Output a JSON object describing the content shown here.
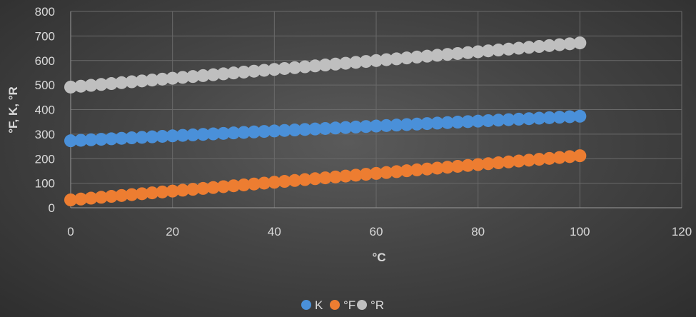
{
  "chart_data": {
    "type": "scatter",
    "xlabel": "°C",
    "ylabel": "°F, K, °R",
    "xlim": [
      0,
      120
    ],
    "ylim": [
      0,
      800
    ],
    "x_ticks": [
      "0",
      "20",
      "40",
      "60",
      "80",
      "100",
      "120"
    ],
    "y_ticks": [
      "0",
      "100",
      "200",
      "300",
      "400",
      "500",
      "600",
      "700",
      "800"
    ],
    "grid": true,
    "legend_position": "bottom",
    "x": [
      0,
      2,
      4,
      6,
      8,
      10,
      12,
      14,
      16,
      18,
      20,
      22,
      24,
      26,
      28,
      30,
      32,
      34,
      36,
      38,
      40,
      42,
      44,
      46,
      48,
      50,
      52,
      54,
      56,
      58,
      60,
      62,
      64,
      66,
      68,
      70,
      72,
      74,
      76,
      78,
      80,
      82,
      84,
      86,
      88,
      90,
      92,
      94,
      96,
      98,
      100
    ],
    "series": [
      {
        "name": "K",
        "color": "#4a90d9",
        "values": [
          273,
          275,
          277,
          279,
          281,
          283,
          285,
          287,
          289,
          291,
          293,
          295,
          297,
          299,
          301,
          303,
          305,
          307,
          309,
          311,
          313,
          315,
          317,
          319,
          321,
          323,
          325,
          327,
          329,
          331,
          333,
          335,
          337,
          339,
          341,
          343,
          345,
          347,
          349,
          351,
          353,
          355,
          357,
          359,
          361,
          363,
          365,
          367,
          369,
          371,
          373
        ]
      },
      {
        "name": "°F",
        "color": "#ed7d31",
        "values": [
          32,
          35.6,
          39.2,
          42.8,
          46.4,
          50,
          53.6,
          57.2,
          60.8,
          64.4,
          68,
          71.6,
          75.2,
          78.8,
          82.4,
          86,
          89.6,
          93.2,
          96.8,
          100.4,
          104,
          107.6,
          111.2,
          114.8,
          118.4,
          122,
          125.6,
          129.2,
          132.8,
          136.4,
          140,
          143.6,
          147.2,
          150.8,
          154.4,
          158,
          161.6,
          165.2,
          168.8,
          172.4,
          176,
          179.6,
          183.2,
          186.8,
          190.4,
          194,
          197.6,
          201.2,
          204.8,
          208.4,
          212
        ]
      },
      {
        "name": "°R",
        "color": "#bfbfbf",
        "values": [
          491.7,
          495.3,
          498.9,
          502.5,
          506.1,
          509.7,
          513.3,
          516.9,
          520.5,
          524.1,
          527.7,
          531.3,
          534.9,
          538.5,
          542.1,
          545.7,
          549.3,
          552.9,
          556.5,
          560.1,
          563.7,
          567.3,
          570.9,
          574.5,
          578.1,
          581.7,
          585.3,
          588.9,
          592.5,
          596.1,
          599.7,
          603.3,
          606.9,
          610.5,
          614.1,
          617.7,
          621.3,
          624.9,
          628.5,
          632.1,
          635.7,
          639.3,
          642.9,
          646.5,
          650.1,
          653.7,
          657.3,
          660.9,
          664.5,
          668.1,
          671.7
        ]
      }
    ]
  }
}
